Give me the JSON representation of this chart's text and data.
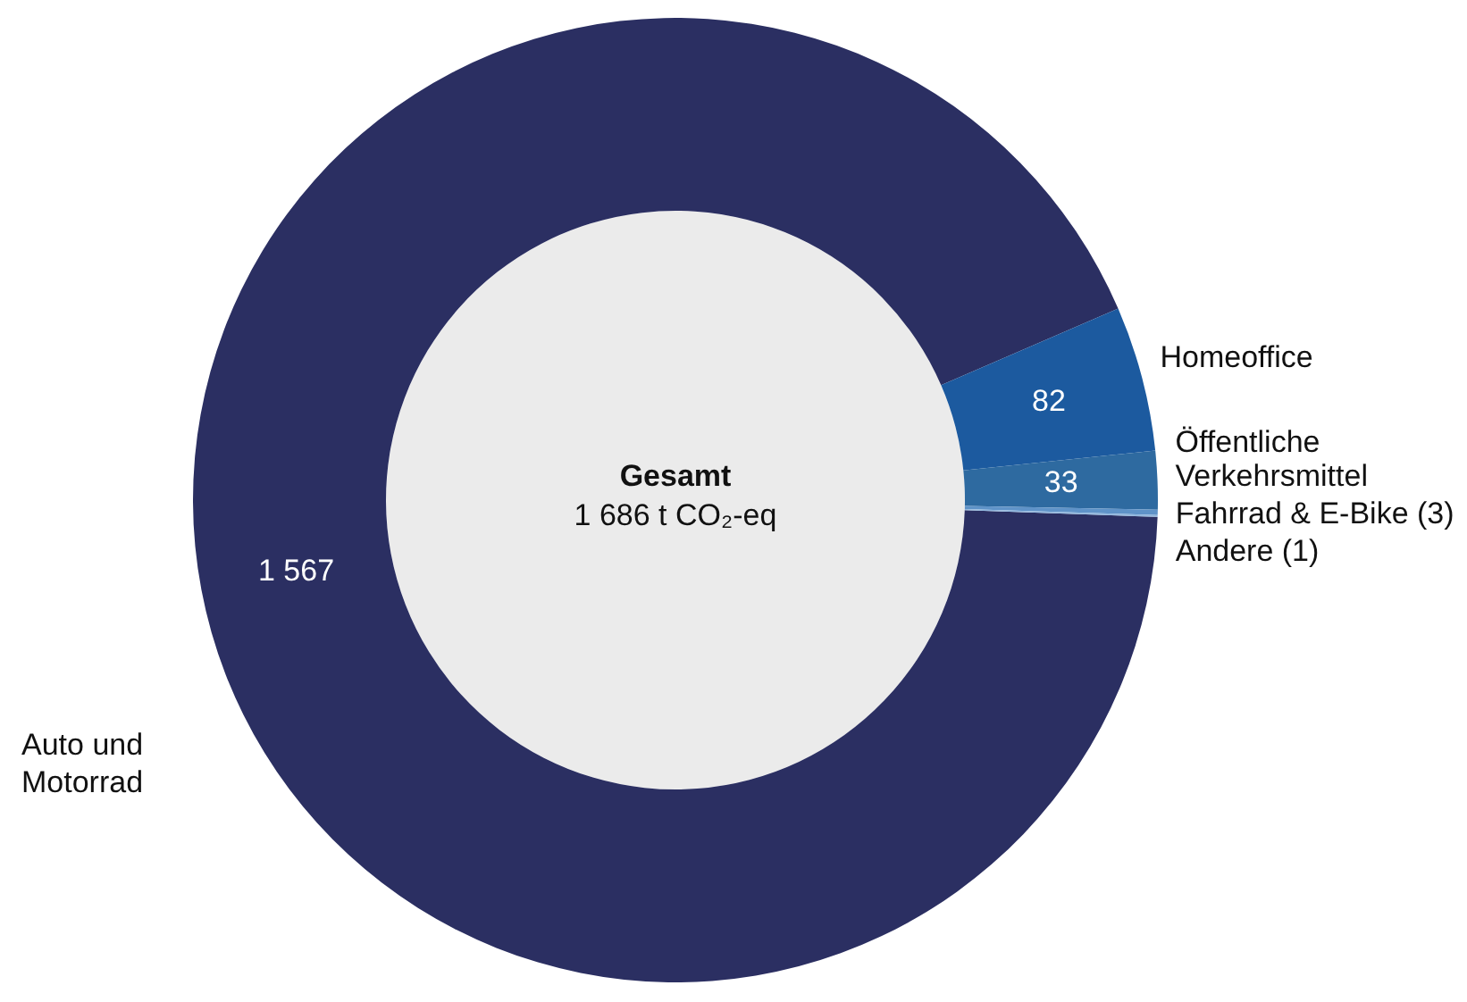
{
  "chart_data": {
    "type": "donut",
    "categories": [
      "Auto und Motorrad",
      "Homeoffice",
      "Öffentliche Verkehrsmittel",
      "Fahrrad & E-Bike (3)",
      "Andere (1)"
    ],
    "values": [
      1567,
      82,
      33,
      3,
      1
    ],
    "value_labels": [
      "1 567",
      "82",
      "33",
      null,
      null
    ],
    "colors": [
      "#2b2f62",
      "#1c5a9f",
      "#2e6aa0",
      "#5f93c8",
      "#8fb5dc"
    ],
    "annotations": [
      "Gesamt",
      "1 686 t CO₂-eq"
    ],
    "legend": false
  }
}
